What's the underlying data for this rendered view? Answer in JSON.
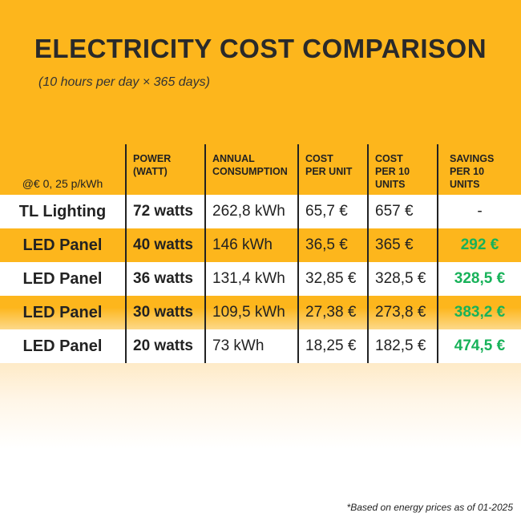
{
  "title": "ELECTRICITY COST COMPARISON",
  "subtitle": "(10 hours per day × 365 days)",
  "table": {
    "headers": [
      "@€ 0, 25 p/kWh",
      "POWER\n(WATT)",
      "ANNUAL\nCONSUMPTION",
      "COST\nPER UNIT",
      "COST\nPER 10\nUNITS",
      "SAVINGS\nPER 10\nUNITS"
    ],
    "rows": [
      [
        "TL Lighting",
        "72 watts",
        "262,8 kWh",
        "65,7 €",
        "657 €",
        "-"
      ],
      [
        "LED Panel",
        "40 watts",
        "146 kWh",
        "36,5 €",
        "365 €",
        "292 €"
      ],
      [
        "LED Panel",
        "36 watts",
        "131,4 kWh",
        "32,85 €",
        "328,5 €",
        "328,5 €"
      ],
      [
        "LED Panel",
        "30 watts",
        "109,5 kWh",
        "27,38 €",
        "273,8 €",
        "383,2 €"
      ],
      [
        "LED Panel",
        "20 watts",
        "73 kWh",
        "18,25 €",
        "182,5 €",
        "474,5 €"
      ]
    ]
  },
  "footnote": "*Based on energy prices as of 01-2025",
  "colors": {
    "accent": "#FDB61C",
    "savings": "#18B25A"
  }
}
